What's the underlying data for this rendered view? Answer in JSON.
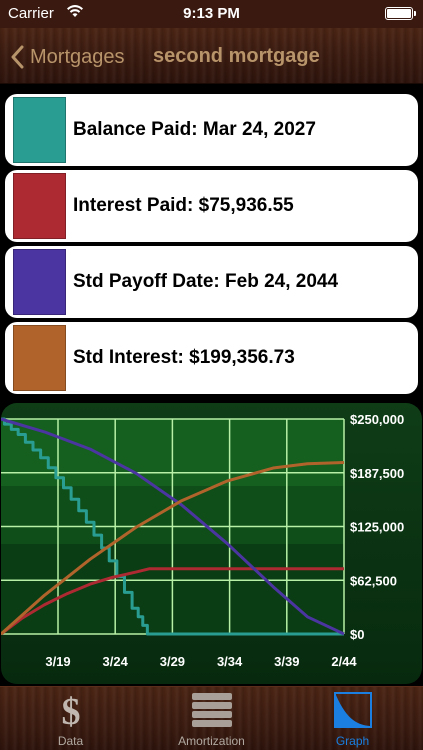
{
  "status_bar": {
    "carrier": "Carrier",
    "time": "9:13 PM"
  },
  "nav": {
    "back_label": "Mortgages",
    "title": "second mortgage"
  },
  "cards": [
    {
      "label": "Balance Paid: Mar 24, 2027",
      "color": "#2a9d93"
    },
    {
      "label": "Interest Paid: $75,936.55",
      "color": "#ad2a33"
    },
    {
      "label": "Std Payoff Date: Feb 24, 2044",
      "color": "#4b35a0"
    },
    {
      "label": "Std Interest: $199,356.73",
      "color": "#b0642c"
    }
  ],
  "chart_data": {
    "type": "line",
    "x_ticks": [
      "3/19",
      "3/24",
      "3/29",
      "3/34",
      "3/39",
      "2/44"
    ],
    "y_ticks": [
      "$250,000",
      "$187,500",
      "$125,000",
      "$62,500",
      "$0"
    ],
    "ylim": [
      0,
      250000
    ],
    "x_range": [
      2014.2,
      2044.2
    ],
    "grid": true,
    "series": [
      {
        "color": "#2a9d93",
        "x": [
          2014.2,
          2016,
          2018,
          2020,
          2022,
          2024,
          2026,
          2027.2,
          2044.2
        ],
        "y": [
          250000,
          232000,
          205000,
          170000,
          130000,
          85000,
          30000,
          0,
          0
        ]
      },
      {
        "color": "#ad2a33",
        "x": [
          2014.2,
          2016,
          2018,
          2020,
          2022,
          2024,
          2026,
          2027.2,
          2044.2
        ],
        "y": [
          0,
          18000,
          34000,
          47000,
          58000,
          66000,
          72000,
          75937,
          75937
        ]
      },
      {
        "color": "#4b35a0",
        "x": [
          2014.2,
          2018,
          2022,
          2026,
          2030,
          2034,
          2038,
          2041,
          2044.2
        ],
        "y": [
          250000,
          235000,
          215000,
          187000,
          150000,
          105000,
          55000,
          20000,
          0
        ]
      },
      {
        "color": "#b0642c",
        "x": [
          2014.2,
          2018,
          2022,
          2026,
          2030,
          2034,
          2038,
          2041,
          2044.2
        ],
        "y": [
          0,
          45000,
          87000,
          124000,
          155000,
          178000,
          193000,
          198000,
          199357
        ]
      }
    ]
  },
  "tabs": [
    {
      "label": "Data",
      "icon": "dollar-icon"
    },
    {
      "label": "Amortization",
      "icon": "stack-icon"
    },
    {
      "label": "Graph",
      "icon": "graph-icon",
      "active": true
    }
  ]
}
